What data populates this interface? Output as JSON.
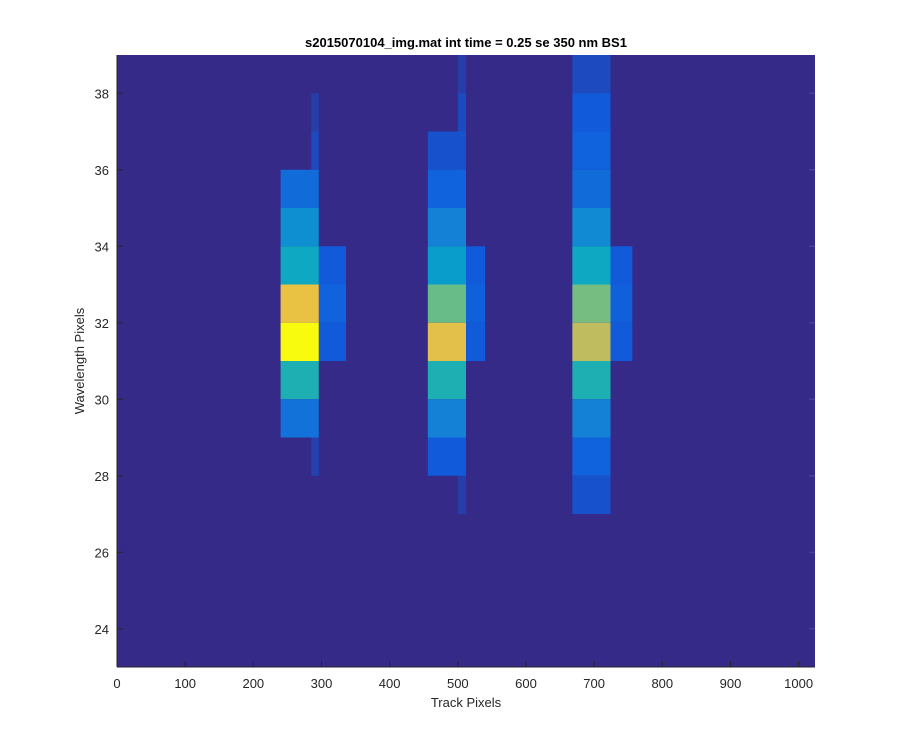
{
  "chart_data": {
    "type": "heatmap",
    "title": "s2015070104_img.mat int time = 0.25 se  350 nm BS1",
    "xlabel": "Track Pixels",
    "ylabel": "Wavelength Pixels",
    "xlim": [
      0,
      1024
    ],
    "ylim": [
      23,
      39
    ],
    "xticks": [
      0,
      100,
      200,
      300,
      400,
      500,
      600,
      700,
      800,
      900,
      1000
    ],
    "yticks": [
      24,
      26,
      28,
      30,
      32,
      34,
      36,
      38
    ],
    "background_color": "#352a87",
    "colormap": [
      "#352a87",
      "#0f5cdd",
      "#1481d6",
      "#06a4ca",
      "#2eb7a4",
      "#87bf77",
      "#d1bb59",
      "#fec832",
      "#f9fb0e"
    ],
    "grid": false,
    "spots": [
      {
        "name": "spot-1",
        "x": [
          240,
          296
        ],
        "columns": [
          {
            "x": [
              296,
              336
            ],
            "rows": [
              {
                "y": 33,
                "v": 0.12
              },
              {
                "y": 32,
                "v": 0.15
              },
              {
                "y": 31,
                "v": 0.12
              }
            ]
          },
          {
            "x": [
              285,
              296
            ],
            "rows": [
              {
                "y": 37,
                "v": 0.05
              },
              {
                "y": 36,
                "v": 0.08
              },
              {
                "y": 28,
                "v": 0.06
              }
            ]
          }
        ],
        "rows": [
          {
            "y": 35,
            "v": 0.18
          },
          {
            "y": 34,
            "v": 0.3
          },
          {
            "y": 33,
            "v": 0.4
          },
          {
            "y": 32,
            "v": 0.82
          },
          {
            "y": 31,
            "v": 1.0
          },
          {
            "y": 30,
            "v": 0.45
          },
          {
            "y": 29,
            "v": 0.2
          }
        ]
      },
      {
        "name": "spot-2",
        "x": [
          456,
          512
        ],
        "columns": [
          {
            "x": [
              512,
              540
            ],
            "rows": [
              {
                "y": 33,
                "v": 0.12
              },
              {
                "y": 32,
                "v": 0.14
              },
              {
                "y": 31,
                "v": 0.12
              }
            ]
          },
          {
            "x": [
              500,
              512
            ],
            "rows": [
              {
                "y": 38,
                "v": 0.05
              },
              {
                "y": 37,
                "v": 0.08
              },
              {
                "y": 36,
                "v": 0.1
              },
              {
                "y": 28,
                "v": 0.08
              },
              {
                "y": 27,
                "v": 0.05
              }
            ]
          }
        ],
        "rows": [
          {
            "y": 36,
            "v": 0.1
          },
          {
            "y": 35,
            "v": 0.15
          },
          {
            "y": 34,
            "v": 0.25
          },
          {
            "y": 33,
            "v": 0.35
          },
          {
            "y": 32,
            "v": 0.58
          },
          {
            "y": 31,
            "v": 0.8
          },
          {
            "y": 30,
            "v": 0.45
          },
          {
            "y": 29,
            "v": 0.25
          },
          {
            "y": 28,
            "v": 0.12
          }
        ]
      },
      {
        "name": "spot-3",
        "x": [
          668,
          724
        ],
        "columns": [
          {
            "x": [
              724,
              756
            ],
            "rows": [
              {
                "y": 33,
                "v": 0.12
              },
              {
                "y": 32,
                "v": 0.14
              },
              {
                "y": 31,
                "v": 0.12
              }
            ]
          },
          {
            "x": [
              710,
              724
            ],
            "rows": [
              {
                "y": 38,
                "v": 0.08
              },
              {
                "y": 37,
                "v": 0.1
              },
              {
                "y": 27,
                "v": 0.08
              }
            ]
          }
        ],
        "rows": [
          {
            "y": 38,
            "v": 0.08
          },
          {
            "y": 37,
            "v": 0.12
          },
          {
            "y": 36,
            "v": 0.15
          },
          {
            "y": 35,
            "v": 0.18
          },
          {
            "y": 34,
            "v": 0.28
          },
          {
            "y": 33,
            "v": 0.4
          },
          {
            "y": 32,
            "v": 0.6
          },
          {
            "y": 31,
            "v": 0.72
          },
          {
            "y": 30,
            "v": 0.45
          },
          {
            "y": 29,
            "v": 0.25
          },
          {
            "y": 28,
            "v": 0.15
          },
          {
            "y": 27,
            "v": 0.1
          }
        ]
      }
    ]
  }
}
